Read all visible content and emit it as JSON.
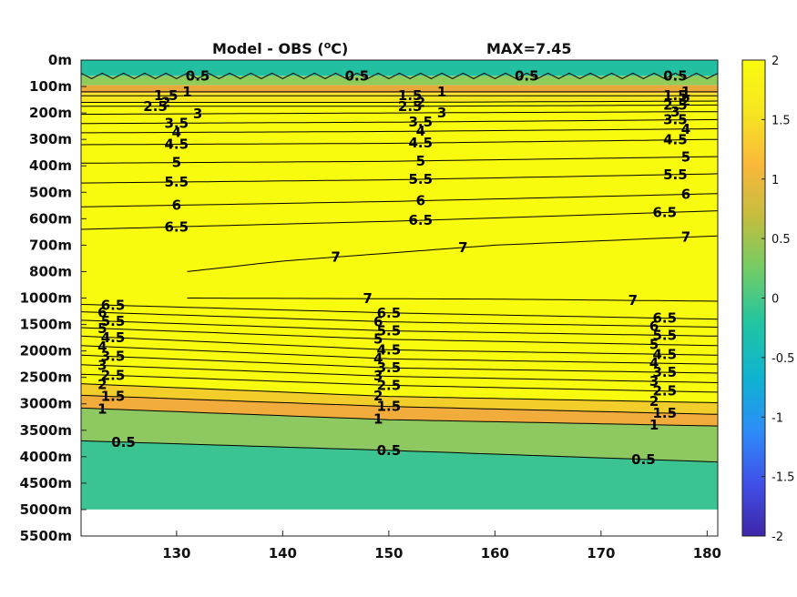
{
  "chart_data": {
    "type": "heatmap",
    "title": "Model - OBS (",
    "title_sup": "o",
    "title_unit": "C)",
    "annotation": "MAX=7.45",
    "xlabel": "",
    "ylabel": "",
    "x_ticks": [
      "130",
      "140",
      "150",
      "160",
      "170",
      "180"
    ],
    "x_tick_values": [
      130,
      140,
      150,
      160,
      170,
      180
    ],
    "xlim": [
      121,
      181
    ],
    "y_ticks": [
      "0m",
      "100m",
      "200m",
      "300m",
      "400m",
      "500m",
      "600m",
      "700m",
      "800m",
      "1000m",
      "1500m",
      "2000m",
      "2500m",
      "3000m",
      "3500m",
      "4000m",
      "4500m",
      "5000m",
      "5500m"
    ],
    "y_depths": [
      0,
      100,
      200,
      300,
      400,
      500,
      600,
      700,
      800,
      1000,
      1500,
      2000,
      2500,
      3000,
      3500,
      4000,
      4500,
      5000,
      5500
    ],
    "colorbar": {
      "ticks": [
        "2",
        "1.5",
        "1",
        "0.5",
        "0",
        "-0.5",
        "-1",
        "-1.5",
        "-2"
      ],
      "tick_values": [
        2,
        1.5,
        1,
        0.5,
        0,
        -0.5,
        -1,
        -1.5,
        -2
      ],
      "clim": [
        -2,
        2
      ],
      "colormap": "parula",
      "colors": [
        "#3e26a8",
        "#4150e8",
        "#2d8cf8",
        "#0fb3d1",
        "#22c5a0",
        "#72cc66",
        "#c4bd3f",
        "#f9b83b",
        "#f6e621",
        "#f9fb0e"
      ]
    },
    "ocean_floor_depth": 5000,
    "contours": [
      {
        "level": 0.5,
        "depth_at_x": [
          [
            121,
            3700
          ],
          [
            150,
            3880
          ],
          [
            181,
            4100
          ]
        ],
        "labels": [
          [
            125,
            "0.5"
          ],
          [
            150,
            "0.5"
          ],
          [
            174,
            "0.5"
          ]
        ]
      },
      {
        "level": 1,
        "depth_at_x": [
          [
            121,
            3080
          ],
          [
            150,
            3300
          ],
          [
            181,
            3420
          ]
        ],
        "labels": [
          [
            123,
            "1"
          ],
          [
            149,
            "1"
          ],
          [
            175,
            "1"
          ]
        ]
      },
      {
        "level": 1.5,
        "depth_at_x": [
          [
            121,
            2840
          ],
          [
            150,
            3050
          ],
          [
            181,
            3200
          ]
        ],
        "labels": [
          [
            124,
            "1.5"
          ],
          [
            150,
            "1.5"
          ],
          [
            176,
            "1.5"
          ]
        ]
      },
      {
        "level": 2,
        "depth_at_x": [
          [
            121,
            2620
          ],
          [
            150,
            2860
          ],
          [
            181,
            2980
          ]
        ],
        "labels": [
          [
            123,
            "2"
          ],
          [
            149,
            "2"
          ],
          [
            175,
            "2"
          ]
        ]
      },
      {
        "level": 2.5,
        "depth_at_x": [
          [
            121,
            2440
          ],
          [
            150,
            2650
          ],
          [
            181,
            2780
          ]
        ],
        "labels": [
          [
            124,
            "2.5"
          ],
          [
            150,
            "2.5"
          ],
          [
            176,
            "2.5"
          ]
        ]
      },
      {
        "level": 3,
        "depth_at_x": [
          [
            121,
            2260
          ],
          [
            150,
            2480
          ],
          [
            181,
            2600
          ]
        ],
        "labels": [
          [
            123,
            "3"
          ],
          [
            149,
            "3"
          ],
          [
            175,
            "3"
          ]
        ]
      },
      {
        "level": 3.5,
        "depth_at_x": [
          [
            121,
            2080
          ],
          [
            150,
            2320
          ],
          [
            181,
            2420
          ]
        ],
        "labels": [
          [
            124,
            "3.5"
          ],
          [
            150,
            "3.5"
          ],
          [
            176,
            "3.5"
          ]
        ]
      },
      {
        "level": 4,
        "depth_at_x": [
          [
            121,
            1900
          ],
          [
            150,
            2150
          ],
          [
            181,
            2250
          ]
        ],
        "labels": [
          [
            123,
            "4"
          ],
          [
            149,
            "4"
          ],
          [
            175,
            "4"
          ]
        ]
      },
      {
        "level": 4.5,
        "depth_at_x": [
          [
            121,
            1720
          ],
          [
            150,
            1980
          ],
          [
            181,
            2080
          ]
        ],
        "labels": [
          [
            124,
            "4.5"
          ],
          [
            150,
            "4.5"
          ],
          [
            176,
            "4.5"
          ]
        ]
      },
      {
        "level": 5,
        "depth_at_x": [
          [
            121,
            1560
          ],
          [
            150,
            1780
          ],
          [
            181,
            1900
          ]
        ],
        "labels": [
          [
            123,
            "5"
          ],
          [
            149,
            "5"
          ],
          [
            175,
            "5"
          ]
        ]
      },
      {
        "level": 5.5,
        "depth_at_x": [
          [
            121,
            1420
          ],
          [
            150,
            1620
          ],
          [
            181,
            1720
          ]
        ],
        "labels": [
          [
            124,
            "5.5"
          ],
          [
            150,
            "5.5"
          ],
          [
            176,
            "5.5"
          ]
        ]
      },
      {
        "level": 6,
        "depth_at_x": [
          [
            121,
            1260
          ],
          [
            150,
            1450
          ],
          [
            181,
            1550
          ]
        ],
        "labels": [
          [
            123,
            "6"
          ],
          [
            149,
            "6"
          ],
          [
            175,
            "6"
          ]
        ]
      },
      {
        "level": 6.5,
        "depth_at_x": [
          [
            121,
            1120
          ],
          [
            150,
            1280
          ],
          [
            181,
            1400
          ]
        ],
        "labels": [
          [
            124,
            "6.5"
          ],
          [
            150,
            "6.5"
          ],
          [
            176,
            "6.5"
          ]
        ]
      },
      {
        "level": 7,
        "depth_at_x": [
          [
            131,
            1000
          ],
          [
            160,
            1020
          ],
          [
            181,
            1060
          ]
        ],
        "labels": [
          [
            148,
            "7"
          ],
          [
            173,
            "7"
          ]
        ]
      },
      {
        "level": 7,
        "depth_at_x": [
          [
            131,
            800
          ],
          [
            140,
            760
          ],
          [
            160,
            700
          ],
          [
            181,
            665
          ]
        ],
        "labels": [
          [
            145,
            "7"
          ],
          [
            157,
            "7"
          ],
          [
            178,
            "7"
          ]
        ]
      },
      {
        "level": 6.5,
        "depth_at_x": [
          [
            121,
            640
          ],
          [
            150,
            610
          ],
          [
            181,
            570
          ]
        ],
        "labels": [
          [
            130,
            "6.5"
          ],
          [
            153,
            "6.5"
          ],
          [
            176,
            "6.5"
          ]
        ]
      },
      {
        "level": 6,
        "depth_at_x": [
          [
            121,
            555
          ],
          [
            150,
            535
          ],
          [
            181,
            505
          ]
        ],
        "labels": [
          [
            130,
            "6"
          ],
          [
            153,
            "6"
          ],
          [
            178,
            "6"
          ]
        ]
      },
      {
        "level": 5.5,
        "depth_at_x": [
          [
            121,
            465
          ],
          [
            150,
            453
          ],
          [
            181,
            430
          ]
        ],
        "labels": [
          [
            130,
            "5.5"
          ],
          [
            153,
            "5.5"
          ],
          [
            177,
            "5.5"
          ]
        ]
      },
      {
        "level": 5,
        "depth_at_x": [
          [
            121,
            390
          ],
          [
            150,
            383
          ],
          [
            181,
            365
          ]
        ],
        "labels": [
          [
            130,
            "5"
          ],
          [
            153,
            "5"
          ],
          [
            178,
            "5"
          ]
        ]
      },
      {
        "level": 4.5,
        "depth_at_x": [
          [
            121,
            320
          ],
          [
            150,
            315
          ],
          [
            181,
            300
          ]
        ],
        "labels": [
          [
            130,
            "4.5"
          ],
          [
            153,
            "4.5"
          ],
          [
            177,
            "4.5"
          ]
        ]
      },
      {
        "level": 4,
        "depth_at_x": [
          [
            121,
            275
          ],
          [
            150,
            270
          ],
          [
            181,
            260
          ]
        ],
        "labels": [
          [
            130,
            "4"
          ],
          [
            153,
            "4"
          ],
          [
            178,
            "4"
          ]
        ]
      },
      {
        "level": 3.5,
        "depth_at_x": [
          [
            121,
            240
          ],
          [
            150,
            235
          ],
          [
            181,
            225
          ]
        ],
        "labels": [
          [
            130,
            "3.5"
          ],
          [
            153,
            "3.5"
          ],
          [
            177,
            "3.5"
          ]
        ]
      },
      {
        "level": 3,
        "depth_at_x": [
          [
            121,
            205
          ],
          [
            150,
            200
          ],
          [
            181,
            195
          ]
        ],
        "labels": [
          [
            132,
            "3"
          ],
          [
            155,
            "3"
          ],
          [
            177,
            "3"
          ]
        ]
      },
      {
        "level": 2.5,
        "depth_at_x": [
          [
            121,
            175
          ],
          [
            150,
            175
          ],
          [
            181,
            170
          ]
        ],
        "labels": [
          [
            128,
            "2.5"
          ],
          [
            152,
            "2.5"
          ],
          [
            177,
            "2.5"
          ]
        ]
      },
      {
        "level": 2,
        "depth_at_x": [
          [
            121,
            160
          ],
          [
            150,
            160
          ],
          [
            181,
            155
          ]
        ],
        "labels": [
          [
            129,
            "2"
          ],
          [
            153,
            "2"
          ],
          [
            178,
            "2"
          ]
        ]
      },
      {
        "level": 1.5,
        "depth_at_x": [
          [
            121,
            135
          ],
          [
            150,
            135
          ],
          [
            181,
            135
          ]
        ],
        "labels": [
          [
            129,
            "1.5"
          ],
          [
            152,
            "1.5"
          ],
          [
            177,
            "1.5"
          ]
        ]
      },
      {
        "level": 1,
        "depth_at_x": [
          [
            121,
            120
          ],
          [
            150,
            120
          ],
          [
            181,
            120
          ]
        ],
        "labels": [
          [
            131,
            "1"
          ],
          [
            155,
            "1"
          ],
          [
            178,
            "1"
          ]
        ]
      },
      {
        "level": 0.5,
        "depth_at_x": [
          [
            121,
            60
          ],
          [
            150,
            60
          ],
          [
            181,
            60
          ]
        ],
        "labels": [
          [
            132,
            "0.5"
          ],
          [
            147,
            "0.5"
          ],
          [
            163,
            "0.5"
          ],
          [
            177,
            "0.5"
          ]
        ]
      }
    ]
  }
}
